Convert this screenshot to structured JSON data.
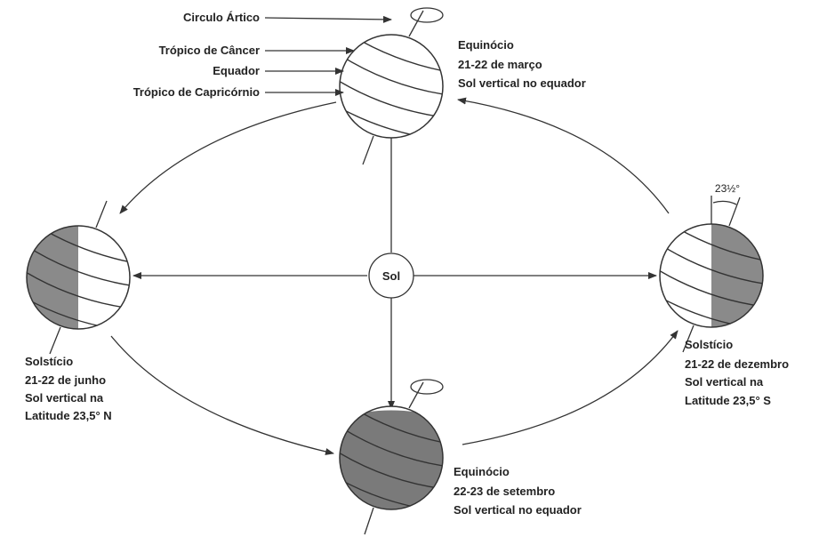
{
  "labels": [
    "Circulo Ártico",
    "Trópico de Câncer",
    "Equador",
    "Trópico de Capricórnio"
  ],
  "sun": "Sol",
  "angle": "23½°",
  "positions": [
    {
      "lines": [
        "Equinócio",
        "21-22 de março",
        "Sol vertical no equador"
      ]
    },
    {
      "lines": [
        "Solstício",
        "21-22 de junho",
        "Sol vertical na",
        "Latitude 23,5° N"
      ]
    },
    {
      "lines": [
        "Equinócio",
        "22-23 de setembro",
        "Sol vertical no equador"
      ]
    },
    {
      "lines": [
        "Solstício",
        "21-22 de dezembro",
        "Sol vertical na",
        "Latitude 23,5° S"
      ]
    }
  ]
}
